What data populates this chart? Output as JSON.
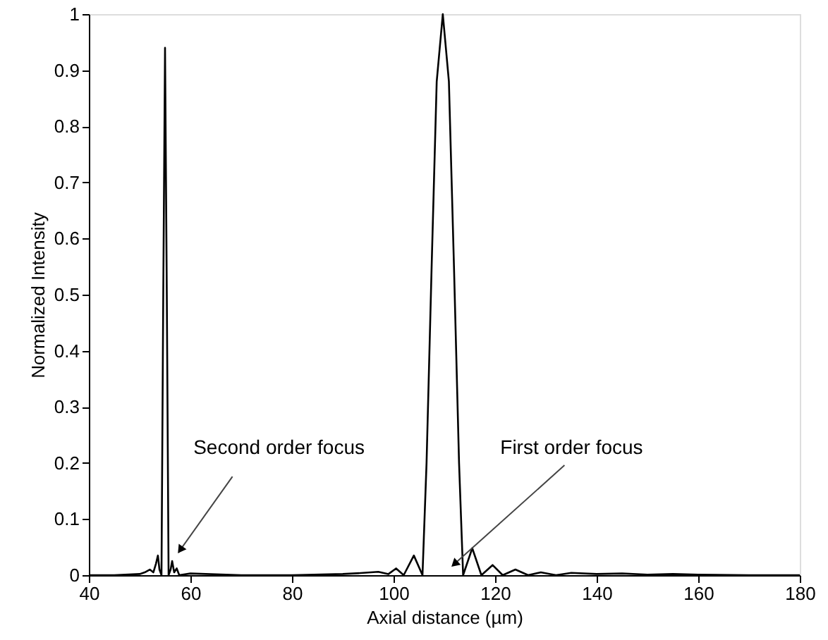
{
  "chart_data": {
    "type": "line",
    "xlabel": "Axial distance (µm)",
    "ylabel": "Normalized Intensity",
    "xlim": [
      40,
      180
    ],
    "xticks": [
      40,
      60,
      80,
      100,
      120,
      140,
      160,
      180
    ],
    "ylim": [
      0,
      1
    ],
    "yticks": [
      0,
      0.1,
      0.2,
      0.3,
      0.4,
      0.5,
      0.6,
      0.7,
      0.8,
      0.9,
      1
    ],
    "grid": false,
    "marker": "none",
    "line_style": "solid",
    "x": [
      40,
      45,
      50,
      51,
      52,
      52.7,
      53.2,
      53.6,
      53.9,
      54.3,
      54.65,
      55,
      55.35,
      55.7,
      56.1,
      56.4,
      56.8,
      57.3,
      57.8,
      60,
      70,
      80,
      90,
      94,
      97,
      99,
      100.5,
      102,
      104,
      105.7,
      106.5,
      107.5,
      108.5,
      109.7,
      110.9,
      111.9,
      112.9,
      113.7,
      115.5,
      117.3,
      119.5,
      121.5,
      124,
      126.5,
      129,
      132,
      135,
      140,
      145,
      150,
      155,
      160,
      170,
      180
    ],
    "series": [
      {
        "color": "#000000",
        "values": [
          0,
          0,
          0.002,
          0.005,
          0.01,
          0.005,
          0.02,
          0.035,
          0.01,
          0,
          0.5,
          0.94,
          0.5,
          0,
          0.01,
          0.025,
          0.005,
          0.012,
          0,
          0.003,
          0,
          0,
          0.002,
          0.004,
          0.006,
          0.002,
          0.012,
          0,
          0.035,
          0,
          0.2,
          0.55,
          0.88,
          1,
          0.88,
          0.55,
          0.2,
          0,
          0.048,
          0,
          0.018,
          0,
          0.01,
          0,
          0.005,
          0,
          0.004,
          0.002,
          0.003,
          0.001,
          0.002,
          0.001,
          0,
          0
        ]
      }
    ],
    "annotations": [
      {
        "text": "Second order focus",
        "x": 58,
        "y": 0.045
      },
      {
        "text": "First order focus",
        "x": 112,
        "y": 0.02
      }
    ]
  }
}
